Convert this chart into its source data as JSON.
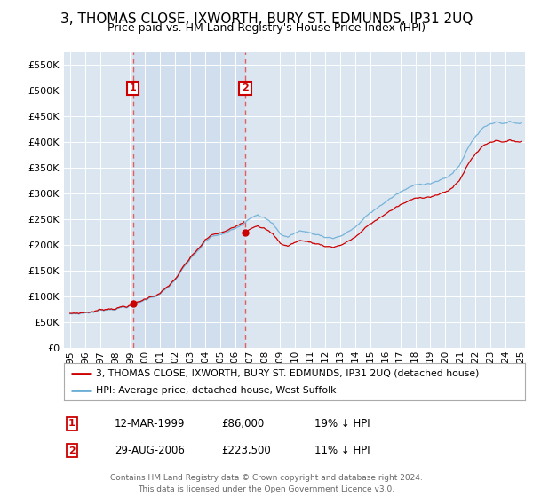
{
  "title": "3, THOMAS CLOSE, IXWORTH, BURY ST. EDMUNDS, IP31 2UQ",
  "subtitle": "Price paid vs. HM Land Registry's House Price Index (HPI)",
  "legend_line1": "3, THOMAS CLOSE, IXWORTH, BURY ST. EDMUNDS, IP31 2UQ (detached house)",
  "legend_line2": "HPI: Average price, detached house, West Suffolk",
  "annotation1_label": "1",
  "annotation1_date": "12-MAR-1999",
  "annotation1_price": "£86,000",
  "annotation1_hpi": "19% ↓ HPI",
  "annotation1_year": 1999.19,
  "annotation1_value": 86000,
  "annotation2_label": "2",
  "annotation2_date": "29-AUG-2006",
  "annotation2_price": "£223,500",
  "annotation2_hpi": "11% ↓ HPI",
  "annotation2_year": 2006.66,
  "annotation2_value": 223500,
  "footer": "Contains HM Land Registry data © Crown copyright and database right 2024.\nThis data is licensed under the Open Government Licence v3.0.",
  "hpi_color": "#6baed6",
  "price_color": "#cc0000",
  "annotation_color": "#cc0000",
  "vline_color": "#e06060",
  "bg_color": "#dce6f1",
  "bg_highlight": "#ccdaea",
  "ylim_min": 0,
  "ylim_max": 575000,
  "title_fontsize": 11,
  "subtitle_fontsize": 9
}
